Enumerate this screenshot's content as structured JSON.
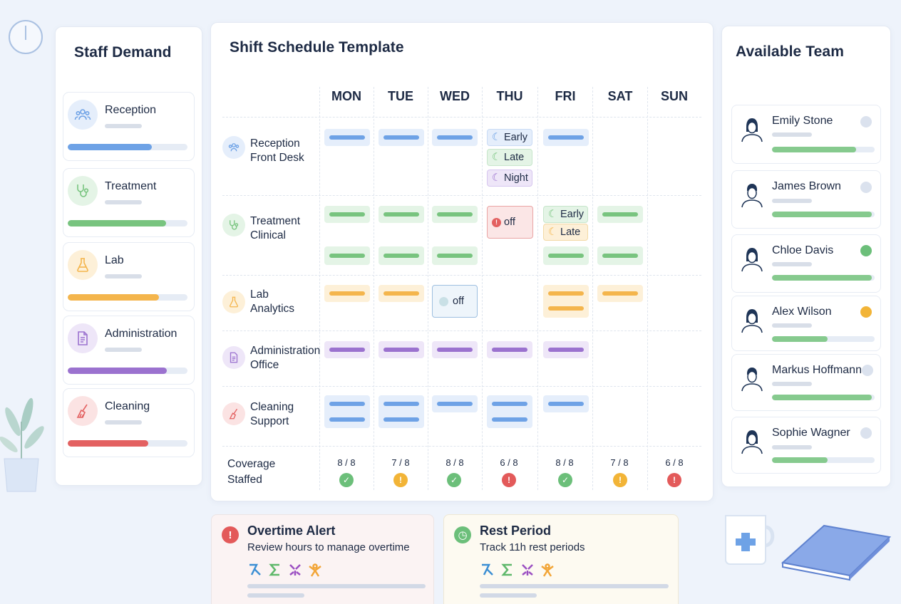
{
  "demand": {
    "title": "Staff Demand",
    "items": [
      {
        "label": "Reception",
        "color": "#6ea2e6",
        "bg": "#e5eefb",
        "level": 0.71
      },
      {
        "label": "Treatment",
        "color": "#78c47f",
        "bg": "#e4f4e6",
        "level": 0.83
      },
      {
        "label": "Lab",
        "color": "#f4b54c",
        "bg": "#fdf0d8",
        "level": 0.77
      },
      {
        "label": "Administration",
        "color": "#9b72cf",
        "bg": "#eee6f8",
        "level": 0.84
      },
      {
        "label": "Cleaning",
        "color": "#e36161",
        "bg": "#fbe3e3",
        "level": 0.68
      }
    ]
  },
  "schedule": {
    "title": "Shift Schedule Template",
    "days": [
      "MON",
      "TUE",
      "WED",
      "THU",
      "FRI",
      "SAT",
      "SUN"
    ],
    "rows": [
      {
        "name": "Reception",
        "sub": "Front Desk"
      },
      {
        "name": "Treatment",
        "sub": "Clinical"
      },
      {
        "name": "Lab",
        "sub": "Analytics"
      },
      {
        "name": "Administration",
        "sub": "Office"
      },
      {
        "name": "Cleaning",
        "sub": "Support"
      }
    ],
    "shift_labels": {
      "early": "Early",
      "late": "Late",
      "night": "Night",
      "off": "off"
    },
    "coverage_label": "Coverage",
    "coverage_sub": "Staffed",
    "coverage": [
      {
        "value": "8 / 8",
        "status": "ok"
      },
      {
        "value": "7 / 8",
        "status": "warn"
      },
      {
        "value": "8 / 8",
        "status": "ok"
      },
      {
        "value": "6 / 8",
        "status": "alert"
      },
      {
        "value": "8 / 8",
        "status": "ok"
      },
      {
        "value": "7 / 8",
        "status": "warn"
      },
      {
        "value": "6 / 8",
        "status": "alert"
      }
    ]
  },
  "team": {
    "title": "Available Team",
    "members": [
      {
        "name": "Emily Stone",
        "status": "idle",
        "load": 0.82
      },
      {
        "name": "James Brown",
        "status": "idle",
        "load": 0.97
      },
      {
        "name": "Chloe Davis",
        "status": "available",
        "load": 0.97
      },
      {
        "name": "Alex Wilson",
        "status": "busy",
        "load": 0.54
      },
      {
        "name": "Markus Hoffmann",
        "status": "idle",
        "load": 0.97
      },
      {
        "name": "Sophie Wagner",
        "status": "idle",
        "load": 0.54
      }
    ]
  },
  "alerts": {
    "overtime": {
      "title": "Overtime Alert",
      "text": "Review hours to manage overtime"
    },
    "rest": {
      "title": "Rest Period",
      "text": "Track 11h rest periods"
    }
  },
  "colors": {
    "blue": "#6ea2e6",
    "green": "#78c47f",
    "orange": "#f4b54c",
    "purple": "#9b72cf",
    "red": "#e36161"
  }
}
